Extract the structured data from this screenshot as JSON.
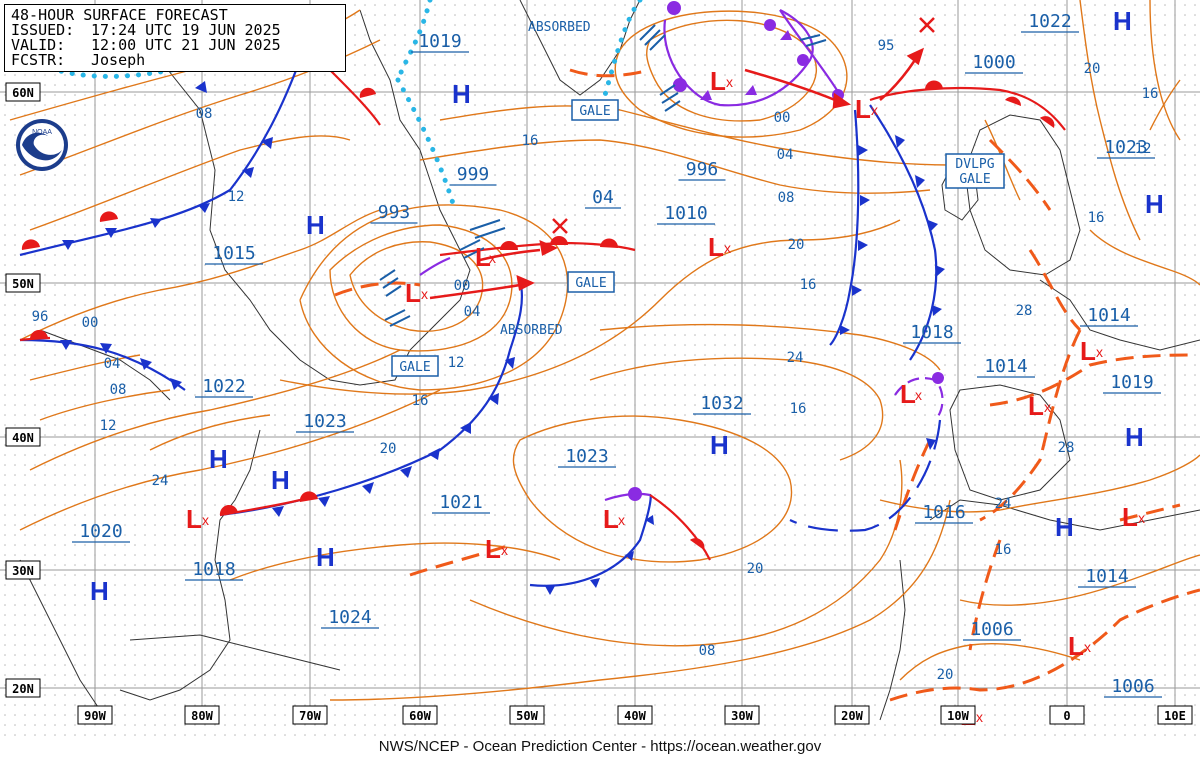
{
  "header": {
    "title": "48-HOUR SURFACE FORECAST",
    "issued_label": "ISSUED:",
    "issued": "17:24 UTC 19 JUN 2025",
    "valid_label": "VALID:",
    "valid": "12:00 UTC 21 JUN 2025",
    "forecaster_label": "FCSTR:",
    "forecaster": "Joseph"
  },
  "footer": "NWS/NCEP - Ocean Prediction Center - https://ocean.weather.gov",
  "colors": {
    "isobar": "#e0781a",
    "label": "#1a5fa8",
    "high": "#1a33cc",
    "low": "#e61a1a",
    "warm_front": "#e61a1a",
    "cold_front": "#1a33cc",
    "occluded": "#8a2be2",
    "trough": "#f05a1a",
    "absorbed": "#29b6e6",
    "grid": "#999999"
  },
  "lat_labels": [
    "60N",
    "50N",
    "40N",
    "30N",
    "20N"
  ],
  "lon_labels": [
    "90W",
    "80W",
    "70W",
    "60W",
    "50W",
    "40W",
    "30W",
    "20W",
    "10W",
    "0",
    "10E"
  ],
  "box_labels": {
    "gale1": "GALE",
    "gale2": "GALE",
    "gale3": "GALE",
    "dvlpg1": "DVLPG",
    "dvlpg2": "GALE"
  },
  "text_labels": {
    "absorbed1": "ABSORBED",
    "absorbed2": "ABSORBED",
    "noaa": "NOAA"
  },
  "center_pressures": [
    "1019",
    "993",
    "999",
    "04",
    "1010",
    "996",
    "1000",
    "1022",
    "1023",
    "1015",
    "1022",
    "1023",
    "1018",
    "1032",
    "1023",
    "1021",
    "1020",
    "1018",
    "1024",
    "1016",
    "1014",
    "1014",
    "1019",
    "1006",
    "1006",
    "1014"
  ],
  "isobar_values": [
    "08",
    "12",
    "16",
    "20",
    "96",
    "00",
    "04",
    "08",
    "12",
    "20",
    "24",
    "16",
    "00",
    "04",
    "00",
    "04",
    "08",
    "12",
    "16",
    "20",
    "24",
    "28",
    "28",
    "24",
    "16",
    "20",
    "16",
    "16",
    "12",
    "08",
    "20",
    "16",
    "95"
  ]
}
